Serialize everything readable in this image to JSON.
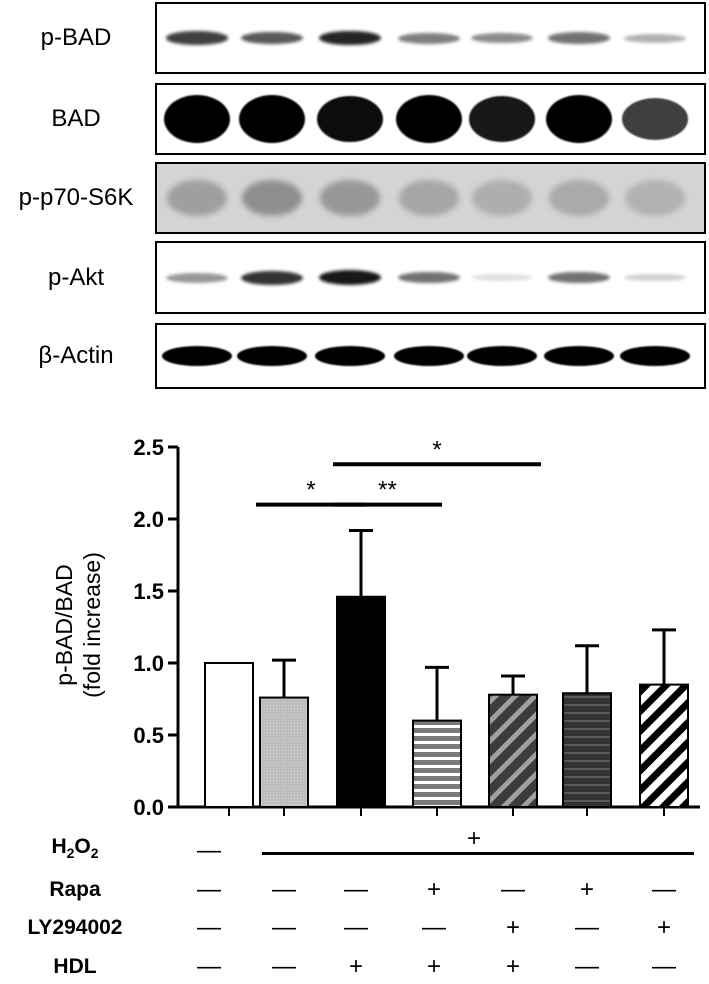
{
  "blots": [
    {
      "label": "p-BAD",
      "bands": [
        0.75,
        0.65,
        0.85,
        0.5,
        0.45,
        0.55,
        0.3
      ],
      "kind": "thin"
    },
    {
      "label": "BAD",
      "bands": [
        1.0,
        1.0,
        0.95,
        1.0,
        0.9,
        1.0,
        0.75
      ],
      "kind": "thick"
    },
    {
      "label": "p-p70-S6K",
      "bands": [
        0.35,
        0.45,
        0.4,
        0.3,
        0.25,
        0.28,
        0.22
      ],
      "kind": "diffuse"
    },
    {
      "label": "p-Akt",
      "bands": [
        0.4,
        0.8,
        0.9,
        0.55,
        0.12,
        0.55,
        0.18
      ],
      "kind": "thin"
    },
    {
      "label": "β-Actin",
      "bands": [
        1.0,
        1.0,
        1.0,
        1.0,
        1.0,
        1.0,
        1.0
      ],
      "kind": "medium"
    }
  ],
  "chart_data": {
    "type": "bar",
    "ylabel": "p-BAD/BAD",
    "ylabel2": "(fold increase)",
    "ylim": [
      0,
      2.5
    ],
    "yticks": [
      "0.0",
      "0.5",
      "1.0",
      "1.5",
      "2.0",
      "2.5"
    ],
    "ytick_values": [
      0,
      0.5,
      1.0,
      1.5,
      2.0,
      2.5
    ],
    "grid": false,
    "bars": [
      {
        "value": 1.0,
        "error": 0.0,
        "fill": "white"
      },
      {
        "value": 0.76,
        "error": 0.26,
        "fill": "lightgray"
      },
      {
        "value": 1.46,
        "error": 0.46,
        "fill": "black"
      },
      {
        "value": 0.6,
        "error": 0.37,
        "fill": "hlines"
      },
      {
        "value": 0.78,
        "error": 0.13,
        "fill": "diag-dark"
      },
      {
        "value": 0.79,
        "error": 0.33,
        "fill": "darkgray"
      },
      {
        "value": 0.85,
        "error": 0.38,
        "fill": "diag-white"
      }
    ],
    "significance": [
      {
        "from": 1,
        "to": 2,
        "label": "*",
        "y": 2.1
      },
      {
        "from": 2,
        "to": 3,
        "label": "**",
        "y": 2.1
      },
      {
        "from": 2,
        "to": 4,
        "label": "*",
        "y": 2.38
      }
    ]
  },
  "conditions": {
    "h2o2": {
      "label_main": "H",
      "sub1": "2",
      "mid": "O",
      "sub2": "2",
      "first": "—",
      "rest": "+"
    },
    "rows": [
      {
        "label": "Rapa",
        "values": [
          "—",
          "—",
          "—",
          "+",
          "—",
          "+",
          "—"
        ]
      },
      {
        "label": "LY294002",
        "values": [
          "—",
          "—",
          "—",
          "—",
          "+",
          "—",
          "+"
        ]
      },
      {
        "label": "HDL",
        "values": [
          "—",
          "—",
          "+",
          "+",
          "+",
          "—",
          "—"
        ]
      }
    ]
  }
}
